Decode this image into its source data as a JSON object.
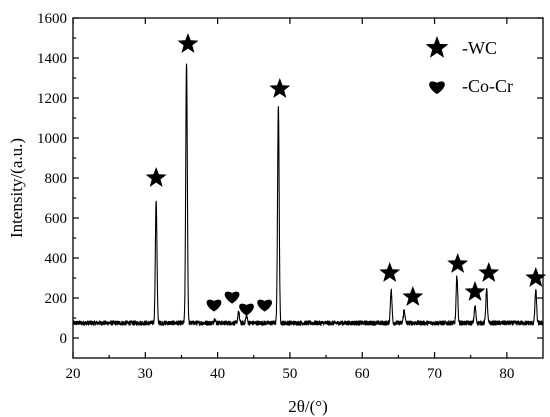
{
  "chart_data": {
    "type": "line",
    "xlabel": "2θ/(°)",
    "ylabel": "Intensity/(a.u.)",
    "xlim": [
      20,
      85
    ],
    "ylim": [
      -100,
      1600
    ],
    "xticks": [
      20,
      30,
      40,
      50,
      60,
      70,
      80
    ],
    "yticks": [
      0,
      200,
      400,
      600,
      800,
      1000,
      1200,
      1400,
      1600
    ],
    "grid": false,
    "legend_position": "top-right",
    "baseline": 75,
    "series": [
      {
        "peaks": [
          {
            "x": 31.5,
            "y": 690
          },
          {
            "x": 35.7,
            "y": 1375
          },
          {
            "x": 39.6,
            "y": 95
          },
          {
            "x": 42.9,
            "y": 130
          },
          {
            "x": 44.0,
            "y": 110
          },
          {
            "x": 48.4,
            "y": 1165
          },
          {
            "x": 64.0,
            "y": 240
          },
          {
            "x": 65.8,
            "y": 140
          },
          {
            "x": 73.1,
            "y": 310
          },
          {
            "x": 75.6,
            "y": 160
          },
          {
            "x": 77.2,
            "y": 245
          },
          {
            "x": 84.0,
            "y": 240
          }
        ]
      }
    ],
    "legend": [
      {
        "marker": "star-icon",
        "label": "-WC"
      },
      {
        "marker": "heart-icon",
        "label": "-Co-Cr"
      }
    ],
    "annotations": [
      {
        "marker": "star-icon",
        "x": 31.5,
        "y": 800
      },
      {
        "marker": "star-icon",
        "x": 35.9,
        "y": 1470
      },
      {
        "marker": "star-icon",
        "x": 48.6,
        "y": 1245
      },
      {
        "marker": "star-icon",
        "x": 63.8,
        "y": 325
      },
      {
        "marker": "star-icon",
        "x": 67.0,
        "y": 205
      },
      {
        "marker": "star-icon",
        "x": 73.2,
        "y": 370
      },
      {
        "marker": "star-icon",
        "x": 75.6,
        "y": 230
      },
      {
        "marker": "star-icon",
        "x": 77.5,
        "y": 325
      },
      {
        "marker": "star-icon",
        "x": 84.0,
        "y": 300
      },
      {
        "marker": "heart-icon",
        "x": 39.5,
        "y": 170
      },
      {
        "marker": "heart-icon",
        "x": 42.0,
        "y": 210
      },
      {
        "marker": "heart-icon",
        "x": 44.0,
        "y": 150
      },
      {
        "marker": "heart-icon",
        "x": 46.5,
        "y": 170
      }
    ]
  }
}
